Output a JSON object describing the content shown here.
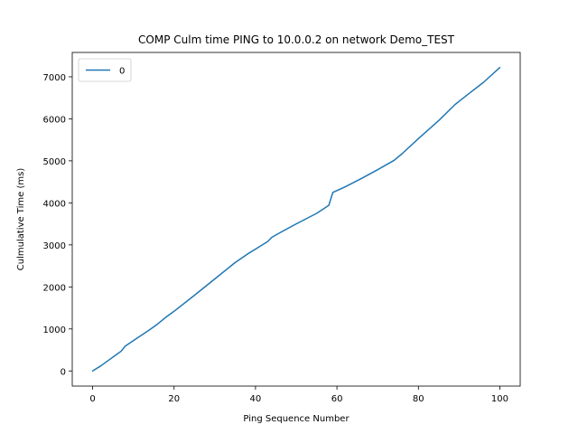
{
  "chart_data": {
    "type": "line",
    "title": "COMP Culm time PING to 10.0.0.2 on network Demo_TEST",
    "xlabel": "Ping Sequence Number",
    "ylabel": "Culmulative Time (ms)",
    "xlim": [
      -5,
      105
    ],
    "ylim": [
      -360,
      7580
    ],
    "xticks": [
      0,
      20,
      40,
      60,
      80,
      100
    ],
    "yticks": [
      0,
      1000,
      2000,
      3000,
      4000,
      5000,
      6000,
      7000
    ],
    "grid": false,
    "legend_position": "upper-left",
    "series": [
      {
        "name": "0",
        "color": "#1f77b4",
        "x": [
          0,
          2,
          4,
          7,
          8,
          10,
          12,
          14,
          16,
          18,
          20,
          25,
          30,
          35,
          38,
          40,
          43,
          44,
          46,
          50,
          55,
          58,
          59,
          62,
          66,
          70,
          74,
          76,
          80,
          85,
          89,
          92,
          96,
          100
        ],
        "y": [
          0,
          120,
          260,
          470,
          590,
          720,
          850,
          980,
          1120,
          1280,
          1420,
          1800,
          2190,
          2580,
          2780,
          2900,
          3080,
          3180,
          3290,
          3500,
          3750,
          3940,
          4250,
          4380,
          4580,
          4790,
          5010,
          5170,
          5530,
          5960,
          6340,
          6570,
          6870,
          7220
        ]
      }
    ]
  }
}
